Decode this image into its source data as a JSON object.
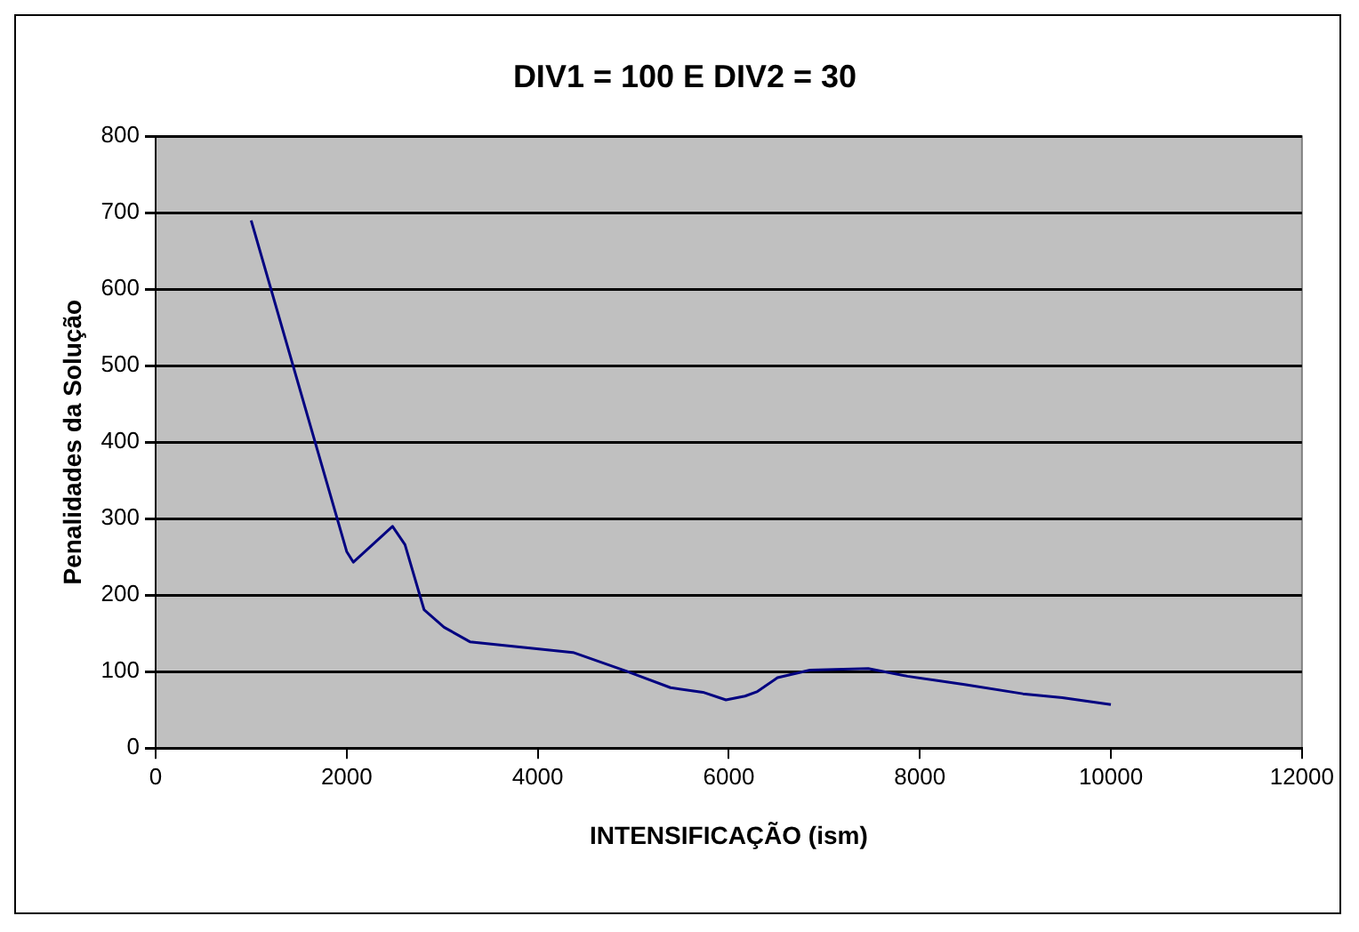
{
  "chart_data": {
    "type": "line",
    "title": "DIV1 = 100 E DIV2 = 30",
    "xlabel": "INTENSIFICAÇÃO (ism)",
    "ylabel": "Penalidades da Solução",
    "series": [
      {
        "color": "#000080",
        "x": [
          1000,
          2000,
          2070,
          2480,
          2610,
          2810,
          3020,
          3290,
          3830,
          4370,
          4920,
          5390,
          5730,
          5970,
          6170,
          6300,
          6510,
          6850,
          7460,
          7870,
          8470,
          9080,
          9490,
          10000
        ],
        "values": [
          690,
          257,
          243,
          290,
          266,
          181,
          158,
          139,
          132,
          125,
          101,
          79,
          73,
          63,
          68,
          74,
          92,
          102,
          104,
          94,
          83,
          71,
          66,
          57
        ]
      }
    ],
    "xlim": [
      0,
      12000
    ],
    "xticks": [
      0,
      2000,
      4000,
      6000,
      8000,
      10000,
      12000
    ],
    "ylim": [
      0,
      800
    ],
    "yticks": [
      0,
      100,
      200,
      300,
      400,
      500,
      600,
      700,
      800
    ],
    "grid": "y",
    "legend": false,
    "marker": "none",
    "line_style": "solid"
  }
}
